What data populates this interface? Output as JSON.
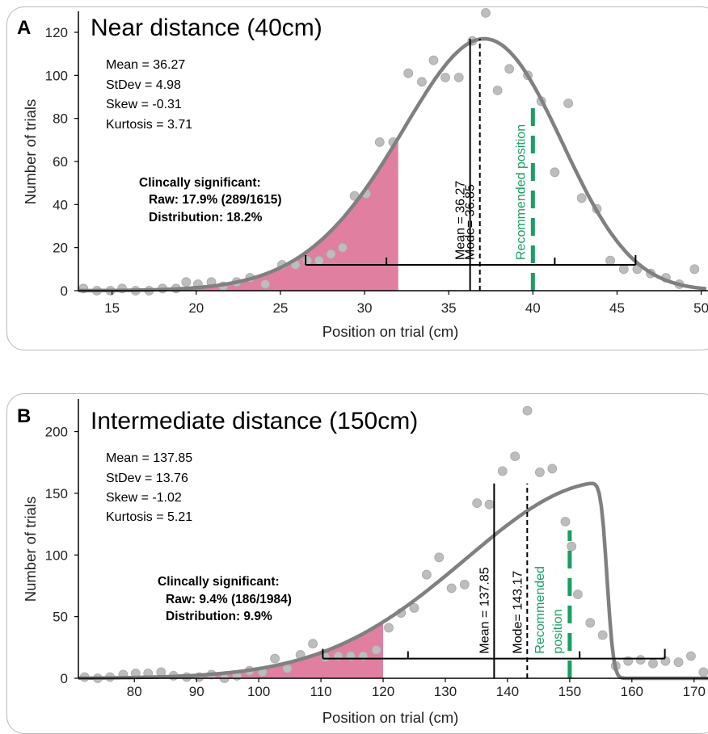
{
  "chart_data": [
    {
      "type": "scatter",
      "panel_letter": "A",
      "title": "Near distance (40cm)",
      "xlabel": "Position on trial (cm)",
      "ylabel": "Number of trials",
      "xlim": [
        13,
        50.5
      ],
      "ylim": [
        0,
        126
      ],
      "xticks": [
        15,
        20,
        25,
        30,
        35,
        40,
        45,
        50
      ],
      "yticks": [
        0,
        20,
        40,
        60,
        80,
        100,
        120
      ],
      "stats": [
        "Mean = 36.27",
        "StDev = 4.98",
        "Skew = -0.31",
        "Kurtosis = 3.71"
      ],
      "clinical": {
        "heading": "Clincally significant:",
        "raw": "Raw: 17.9% (289/1615)",
        "distribution": "Distribution: 18.2%",
        "threshold_x": 32,
        "color": "#e07fa0"
      },
      "points": [
        [
          13.3,
          1
        ],
        [
          14.1,
          0
        ],
        [
          14.9,
          0
        ],
        [
          15.6,
          1
        ],
        [
          16.4,
          0
        ],
        [
          17.2,
          0
        ],
        [
          18.0,
          1
        ],
        [
          18.8,
          1
        ],
        [
          19.4,
          4
        ],
        [
          20.1,
          3
        ],
        [
          20.9,
          4
        ],
        [
          21.6,
          2
        ],
        [
          22.4,
          4
        ],
        [
          23.2,
          6
        ],
        [
          24.1,
          3
        ],
        [
          25.1,
          12
        ],
        [
          25.9,
          12
        ],
        [
          26.6,
          14
        ],
        [
          27.3,
          14
        ],
        [
          28.0,
          17
        ],
        [
          28.7,
          20
        ],
        [
          29.4,
          44
        ],
        [
          30.1,
          45
        ],
        [
          30.9,
          69
        ],
        [
          31.7,
          69
        ],
        [
          32.6,
          101
        ],
        [
          33.4,
          97
        ],
        [
          34.1,
          107
        ],
        [
          34.8,
          99
        ],
        [
          35.6,
          99
        ],
        [
          36.4,
          116
        ],
        [
          37.2,
          129
        ],
        [
          37.9,
          93
        ],
        [
          38.6,
          103
        ],
        [
          39.7,
          100
        ],
        [
          40.5,
          88
        ],
        [
          41.3,
          55
        ],
        [
          42.1,
          87
        ],
        [
          42.9,
          43
        ],
        [
          43.8,
          38
        ],
        [
          44.6,
          14
        ],
        [
          45.4,
          10
        ],
        [
          46.2,
          10
        ],
        [
          47.0,
          8
        ],
        [
          47.9,
          6
        ],
        [
          48.7,
          3
        ],
        [
          49.6,
          10
        ]
      ],
      "point_color": "#bdbdbd",
      "fit": {
        "mean": 36.27,
        "sd": 4.98,
        "skew": -0.31,
        "peak": 117,
        "color": "#808080"
      },
      "mean_line": {
        "x": 36.27,
        "label": "Mean = 36.27"
      },
      "mode_line": {
        "x": 36.85,
        "label": "Mode= 36.85"
      },
      "recommended": {
        "x": 40,
        "y_top": 85,
        "label_lines": [
          "Recommended position"
        ],
        "color": "#1a9e63"
      },
      "range_bar": {
        "y": 12,
        "x_start": 26.5,
        "x_end": 46.1,
        "ticks": [
          26.5,
          31.3,
          41.3,
          46.1
        ]
      }
    },
    {
      "type": "scatter",
      "panel_letter": "B",
      "title": "Intermediate distance (150cm)",
      "xlabel": "Position on trial (cm)",
      "ylabel": "Number of trials",
      "xlim": [
        71,
        172.5
      ],
      "ylim": [
        0,
        220
      ],
      "xticks": [
        80,
        90,
        100,
        110,
        120,
        130,
        140,
        150,
        160,
        170
      ],
      "yticks": [
        0,
        50,
        100,
        150,
        200
      ],
      "stats": [
        "Mean = 137.85",
        "StDev = 13.76",
        "Skew = -1.02",
        "Kurtosis = 5.21"
      ],
      "clinical": {
        "heading": "Clincally significant:",
        "raw": "Raw: 9.4% (186/1984)",
        "distribution": "Distribution: 9.9%",
        "threshold_x": 120,
        "color": "#e07fa0"
      },
      "points": [
        [
          72,
          1
        ],
        [
          74.1,
          0
        ],
        [
          76.1,
          1
        ],
        [
          78.2,
          3
        ],
        [
          80.2,
          4
        ],
        [
          82.2,
          4
        ],
        [
          84.3,
          5
        ],
        [
          86.3,
          2
        ],
        [
          88.4,
          1
        ],
        [
          90.4,
          1
        ],
        [
          92.4,
          3
        ],
        [
          94.5,
          0
        ],
        [
          96.5,
          2
        ],
        [
          98.5,
          6
        ],
        [
          100.6,
          5
        ],
        [
          102.6,
          16
        ],
        [
          104.6,
          8
        ],
        [
          106.7,
          19
        ],
        [
          108.7,
          28
        ],
        [
          110.7,
          17
        ],
        [
          112.8,
          18
        ],
        [
          114.8,
          18
        ],
        [
          116.8,
          18
        ],
        [
          118.9,
          23
        ],
        [
          120.9,
          41
        ],
        [
          122.9,
          53
        ],
        [
          125,
          57
        ],
        [
          127,
          84
        ],
        [
          129,
          98
        ],
        [
          131,
          73
        ],
        [
          133.1,
          76
        ],
        [
          135.1,
          142
        ],
        [
          137.1,
          141
        ],
        [
          139.2,
          168
        ],
        [
          141.2,
          180
        ],
        [
          143.2,
          217
        ],
        [
          145.2,
          167
        ],
        [
          147.2,
          170
        ],
        [
          149.3,
          127
        ],
        [
          150.3,
          107
        ],
        [
          151.3,
          68
        ],
        [
          153.3,
          45
        ],
        [
          155.3,
          35
        ],
        [
          157.4,
          10
        ],
        [
          159.4,
          14
        ],
        [
          161.4,
          15
        ],
        [
          163.4,
          12
        ],
        [
          165.4,
          14
        ],
        [
          167.5,
          13
        ],
        [
          169.5,
          18
        ],
        [
          171.5,
          5
        ]
      ],
      "point_color": "#bdbdbd",
      "fit": {
        "mean": 137.85,
        "sd": 13.76,
        "skew": -1.02,
        "peak": 158,
        "color": "#808080"
      },
      "mean_line": {
        "x": 137.85,
        "label": "Mean = 137.85"
      },
      "mode_line": {
        "x": 143.17,
        "label": "Mode= 143.17"
      },
      "recommended": {
        "x": 150,
        "y_top": 120,
        "label_lines": [
          "Recommended",
          "position"
        ],
        "color": "#1a9e63"
      },
      "range_bar": {
        "y": 16,
        "x_start": 110.3,
        "x_end": 165.3,
        "ticks": [
          110.3,
          124,
          151.6,
          165.3
        ]
      }
    }
  ]
}
